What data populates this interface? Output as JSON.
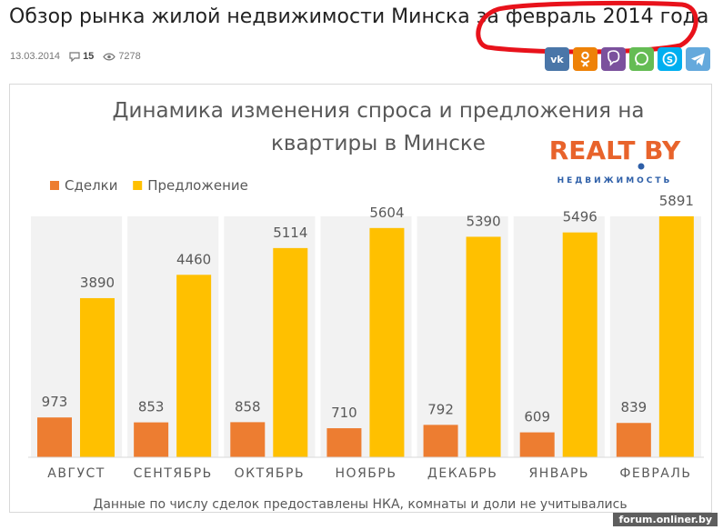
{
  "article": {
    "title": "Обзор рынка жилой недвижимости Минска за февраль 2014 года",
    "date": "13.03.2014",
    "comments": "15",
    "views": "7278"
  },
  "share": [
    {
      "name": "vk-share-button",
      "icon": "vk-icon",
      "label": "ВК",
      "color": "#4a76a8"
    },
    {
      "name": "ok-share-button",
      "icon": "odnoklassniki-icon",
      "label": "ОК",
      "color": "#ee8208"
    },
    {
      "name": "viber-share-button",
      "icon": "viber-icon",
      "label": "Viber",
      "color": "#7b519d"
    },
    {
      "name": "whatsapp-share-button",
      "icon": "whatsapp-icon",
      "label": "WhatsApp",
      "color": "#65bc54"
    },
    {
      "name": "skype-share-button",
      "icon": "skype-icon",
      "label": "Skype",
      "color": "#00aff0"
    },
    {
      "name": "telegram-share-button",
      "icon": "telegram-icon",
      "label": "Telegram",
      "color": "#64a9dc"
    }
  ],
  "logo": {
    "main": "REALT BY",
    "sub": "НЕДВИЖИМОСТЬ"
  },
  "chart_data": {
    "type": "bar",
    "title": "Динамика изменения спроса и предложения на квартиры в Минске",
    "title_lines": [
      "Динамика изменения спроса и предложения на",
      "квартиры в Минске"
    ],
    "categories": [
      "АВГУСТ",
      "СЕНТЯБРЬ",
      "ОКТЯБРЬ",
      "НОЯБРЬ",
      "ДЕКАБРЬ",
      "ЯНВАРЬ",
      "ФЕВРАЛЬ"
    ],
    "series": [
      {
        "name": "Сделки",
        "values": [
          973,
          853,
          858,
          710,
          792,
          609,
          839
        ],
        "color": "#ed7d31"
      },
      {
        "name": "Предложение",
        "values": [
          3890,
          4460,
          5114,
          5604,
          5390,
          5496,
          5891
        ],
        "color": "#ffc000"
      }
    ],
    "ylim": [
      0,
      6000
    ],
    "grid": false,
    "legend": "top-left",
    "note": "Данные по числу сделок предоставлены НКА, комнаты и доли не учитывались"
  },
  "watermark": "forum.onliner.by"
}
